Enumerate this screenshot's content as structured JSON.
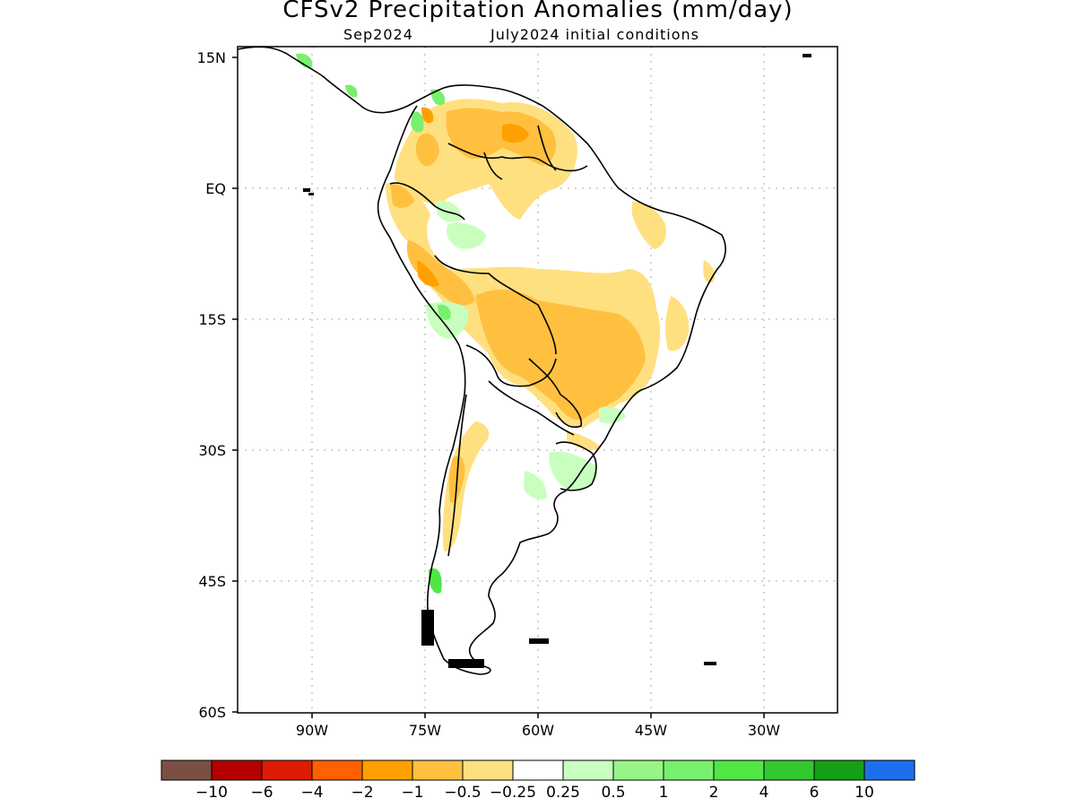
{
  "title": "CFSv2 Precipitation Anomalies (mm/day)",
  "subtitle_left": "Sep2024",
  "subtitle_right": "July2024 initial conditions",
  "lat_ticks": [
    "15N",
    "EQ",
    "15S",
    "30S",
    "45S",
    "60S"
  ],
  "lon_ticks": [
    "90W",
    "75W",
    "60W",
    "45W",
    "30W"
  ],
  "colorbar": {
    "colors": [
      "#7a4f44",
      "#b40000",
      "#dd1c05",
      "#ff6000",
      "#ffa000",
      "#ffc040",
      "#ffe080",
      "#ffffff",
      "#c8ffbe",
      "#96f586",
      "#78f06e",
      "#50e646",
      "#32c832",
      "#14a014",
      "#1e6eeb"
    ],
    "labels": [
      "−10",
      "−6",
      "−4",
      "−2",
      "−1",
      "−0.5",
      "−0.25",
      "0.25",
      "0.5",
      "1",
      "2",
      "4",
      "6",
      "10"
    ]
  }
}
